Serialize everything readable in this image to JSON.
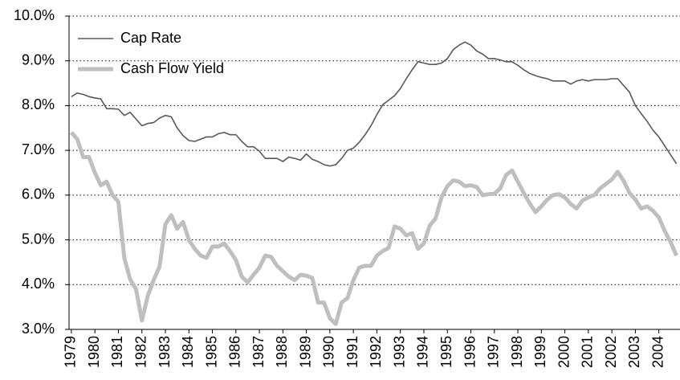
{
  "chart_data": {
    "type": "line",
    "x": [
      1979,
      1979.25,
      1979.5,
      1979.75,
      1980,
      1980.25,
      1980.5,
      1980.75,
      1981,
      1981.25,
      1981.5,
      1981.75,
      1982,
      1982.25,
      1982.5,
      1982.75,
      1983,
      1983.25,
      1983.5,
      1983.75,
      1984,
      1984.25,
      1984.5,
      1984.75,
      1985,
      1985.25,
      1985.5,
      1985.75,
      1986,
      1986.25,
      1986.5,
      1986.75,
      1987,
      1987.25,
      1987.5,
      1987.75,
      1988,
      1988.25,
      1988.5,
      1988.75,
      1989,
      1989.25,
      1989.5,
      1989.75,
      1990,
      1990.25,
      1990.5,
      1990.75,
      1991,
      1991.25,
      1991.5,
      1991.75,
      1992,
      1992.25,
      1992.5,
      1992.75,
      1993,
      1993.25,
      1993.5,
      1993.75,
      1994,
      1994.25,
      1994.5,
      1994.75,
      1995,
      1995.25,
      1995.5,
      1995.75,
      1996,
      1996.25,
      1996.5,
      1996.75,
      1997,
      1997.25,
      1997.5,
      1997.75,
      1998,
      1998.25,
      1998.5,
      1998.75,
      1999,
      1999.25,
      1999.5,
      1999.75,
      2000,
      2000.25,
      2000.5,
      2000.75,
      2001,
      2001.25,
      2001.5,
      2001.75,
      2002,
      2002.25,
      2002.5,
      2002.75,
      2003,
      2003.25,
      2003.5,
      2003.75,
      2004,
      2004.25,
      2004.5,
      2004.75
    ],
    "series": [
      {
        "name": "Cap Rate",
        "color": "#595959",
        "values": [
          8.2,
          8.28,
          8.25,
          8.2,
          8.17,
          8.15,
          7.93,
          7.93,
          7.92,
          7.78,
          7.85,
          7.7,
          7.55,
          7.6,
          7.62,
          7.72,
          7.78,
          7.75,
          7.5,
          7.33,
          7.22,
          7.2,
          7.25,
          7.3,
          7.3,
          7.37,
          7.4,
          7.35,
          7.35,
          7.2,
          7.08,
          7.08,
          6.98,
          6.82,
          6.82,
          6.82,
          6.75,
          6.85,
          6.82,
          6.78,
          6.92,
          6.8,
          6.75,
          6.68,
          6.65,
          6.68,
          6.82,
          7.0,
          7.05,
          7.18,
          7.35,
          7.55,
          7.8,
          8.02,
          8.12,
          8.22,
          8.38,
          8.6,
          8.8,
          8.98,
          8.95,
          8.92,
          8.92,
          8.95,
          9.05,
          9.25,
          9.35,
          9.42,
          9.35,
          9.22,
          9.15,
          9.05,
          9.05,
          9.02,
          8.98,
          8.98,
          8.9,
          8.8,
          8.72,
          8.67,
          8.63,
          8.6,
          8.55,
          8.55,
          8.55,
          8.48,
          8.55,
          8.58,
          8.55,
          8.58,
          8.58,
          8.58,
          8.6,
          8.6,
          8.45,
          8.3,
          8.0,
          7.82,
          7.65,
          7.45,
          7.3,
          7.1,
          6.9,
          6.7
        ]
      },
      {
        "name": "Cash Flow  Yield",
        "color": "#bfbfbf",
        "values": [
          7.4,
          7.25,
          6.85,
          6.85,
          6.5,
          6.22,
          6.3,
          6.0,
          5.85,
          4.6,
          4.12,
          3.9,
          3.2,
          3.75,
          4.1,
          4.4,
          5.35,
          5.55,
          5.25,
          5.4,
          5.0,
          4.8,
          4.65,
          4.6,
          4.85,
          4.85,
          4.92,
          4.75,
          4.55,
          4.18,
          4.05,
          4.22,
          4.38,
          4.65,
          4.62,
          4.42,
          4.3,
          4.18,
          4.1,
          4.22,
          4.2,
          4.15,
          3.6,
          3.6,
          3.25,
          3.12,
          3.6,
          3.7,
          4.1,
          4.38,
          4.42,
          4.42,
          4.65,
          4.75,
          4.82,
          5.3,
          5.25,
          5.1,
          5.15,
          4.8,
          4.92,
          5.32,
          5.48,
          5.95,
          6.2,
          6.33,
          6.3,
          6.2,
          6.22,
          6.18,
          6.0,
          6.02,
          6.03,
          6.15,
          6.45,
          6.55,
          6.3,
          6.05,
          5.82,
          5.62,
          5.75,
          5.9,
          6.0,
          6.02,
          5.95,
          5.8,
          5.7,
          5.88,
          5.95,
          6.0,
          6.15,
          6.25,
          6.35,
          6.52,
          6.32,
          6.05,
          5.9,
          5.7,
          5.75,
          5.65,
          5.5,
          5.2,
          4.95,
          4.65
        ]
      }
    ],
    "xlim": [
      1978.9,
      2004.9
    ],
    "xticks": [
      1979,
      1980,
      1981,
      1982,
      1983,
      1984,
      1985,
      1986,
      1987,
      1988,
      1989,
      1990,
      1991,
      1992,
      1993,
      1994,
      1995,
      1996,
      1997,
      1998,
      1999,
      2000,
      2001,
      2002,
      2003,
      2004
    ],
    "ylim": [
      3,
      10
    ],
    "yticks": [
      {
        "value": 3,
        "label": "3.0%"
      },
      {
        "value": 4,
        "label": "4.0%"
      },
      {
        "value": 5,
        "label": "5.0%"
      },
      {
        "value": 6,
        "label": "6.0%"
      },
      {
        "value": 7,
        "label": "7.0%"
      },
      {
        "value": 8,
        "label": "8.0%"
      },
      {
        "value": 9,
        "label": "9.0%"
      },
      {
        "value": 10,
        "label": "10.0%"
      }
    ],
    "grid": true,
    "legend": "upper left"
  }
}
